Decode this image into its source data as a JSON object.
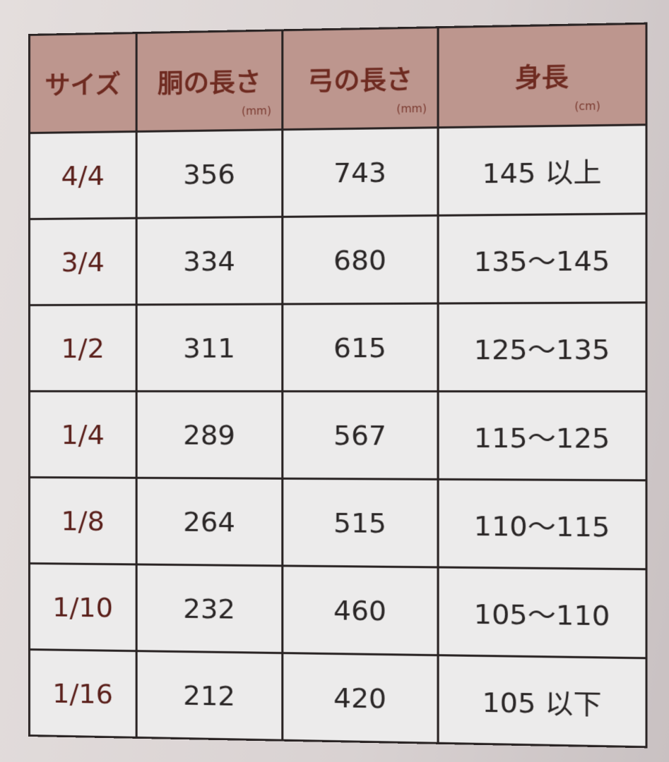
{
  "table": {
    "headers": [
      {
        "label": "サイズ",
        "unit": ""
      },
      {
        "label": "胴の長さ",
        "unit": "(mm)"
      },
      {
        "label": "弓の長さ",
        "unit": "(mm)"
      },
      {
        "label": "身長",
        "unit": "(cm)"
      }
    ],
    "rows": [
      [
        "4/4",
        "356",
        "743",
        "145 以上"
      ],
      [
        "3/4",
        "334",
        "680",
        "135～145"
      ],
      [
        "1/2",
        "311",
        "615",
        "125～135"
      ],
      [
        "1/4",
        "289",
        "567",
        "115～125"
      ],
      [
        "1/8",
        "264",
        "515",
        "110～115"
      ],
      [
        "1/10",
        "232",
        "460",
        "105～110"
      ],
      [
        "1/16",
        "212",
        "420",
        "105 以下"
      ]
    ]
  },
  "colors": {
    "header_bg": "#bd968e",
    "header_text": "#6e2a20",
    "cell_bg": "#ecebeb"
  }
}
